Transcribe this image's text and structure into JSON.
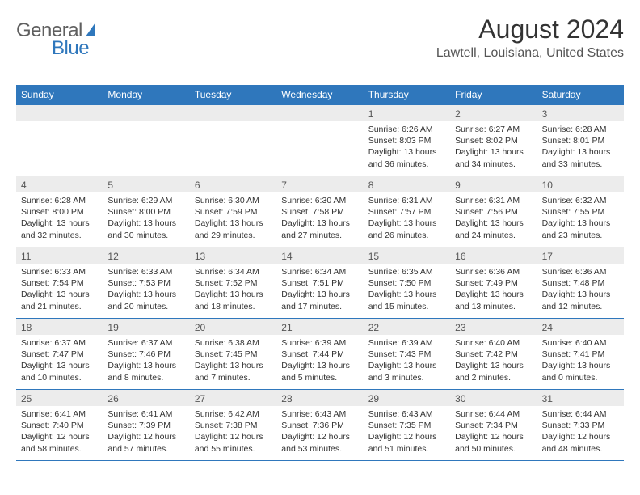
{
  "logo": {
    "general": "General",
    "blue": "Blue"
  },
  "title": "August 2024",
  "location": "Lawtell, Louisiana, United States",
  "colors": {
    "accent": "#2f77bc",
    "headerRowBg": "#ececec",
    "textDark": "#333333",
    "textMuted": "#555555",
    "logoGray": "#5f5f5f"
  },
  "dow": [
    "Sunday",
    "Monday",
    "Tuesday",
    "Wednesday",
    "Thursday",
    "Friday",
    "Saturday"
  ],
  "weeks": [
    [
      {
        "n": "",
        "sr": "",
        "ss": "",
        "dl": ""
      },
      {
        "n": "",
        "sr": "",
        "ss": "",
        "dl": ""
      },
      {
        "n": "",
        "sr": "",
        "ss": "",
        "dl": ""
      },
      {
        "n": "",
        "sr": "",
        "ss": "",
        "dl": ""
      },
      {
        "n": "1",
        "sr": "Sunrise: 6:26 AM",
        "ss": "Sunset: 8:03 PM",
        "dl": "Daylight: 13 hours and 36 minutes."
      },
      {
        "n": "2",
        "sr": "Sunrise: 6:27 AM",
        "ss": "Sunset: 8:02 PM",
        "dl": "Daylight: 13 hours and 34 minutes."
      },
      {
        "n": "3",
        "sr": "Sunrise: 6:28 AM",
        "ss": "Sunset: 8:01 PM",
        "dl": "Daylight: 13 hours and 33 minutes."
      }
    ],
    [
      {
        "n": "4",
        "sr": "Sunrise: 6:28 AM",
        "ss": "Sunset: 8:00 PM",
        "dl": "Daylight: 13 hours and 32 minutes."
      },
      {
        "n": "5",
        "sr": "Sunrise: 6:29 AM",
        "ss": "Sunset: 8:00 PM",
        "dl": "Daylight: 13 hours and 30 minutes."
      },
      {
        "n": "6",
        "sr": "Sunrise: 6:30 AM",
        "ss": "Sunset: 7:59 PM",
        "dl": "Daylight: 13 hours and 29 minutes."
      },
      {
        "n": "7",
        "sr": "Sunrise: 6:30 AM",
        "ss": "Sunset: 7:58 PM",
        "dl": "Daylight: 13 hours and 27 minutes."
      },
      {
        "n": "8",
        "sr": "Sunrise: 6:31 AM",
        "ss": "Sunset: 7:57 PM",
        "dl": "Daylight: 13 hours and 26 minutes."
      },
      {
        "n": "9",
        "sr": "Sunrise: 6:31 AM",
        "ss": "Sunset: 7:56 PM",
        "dl": "Daylight: 13 hours and 24 minutes."
      },
      {
        "n": "10",
        "sr": "Sunrise: 6:32 AM",
        "ss": "Sunset: 7:55 PM",
        "dl": "Daylight: 13 hours and 23 minutes."
      }
    ],
    [
      {
        "n": "11",
        "sr": "Sunrise: 6:33 AM",
        "ss": "Sunset: 7:54 PM",
        "dl": "Daylight: 13 hours and 21 minutes."
      },
      {
        "n": "12",
        "sr": "Sunrise: 6:33 AM",
        "ss": "Sunset: 7:53 PM",
        "dl": "Daylight: 13 hours and 20 minutes."
      },
      {
        "n": "13",
        "sr": "Sunrise: 6:34 AM",
        "ss": "Sunset: 7:52 PM",
        "dl": "Daylight: 13 hours and 18 minutes."
      },
      {
        "n": "14",
        "sr": "Sunrise: 6:34 AM",
        "ss": "Sunset: 7:51 PM",
        "dl": "Daylight: 13 hours and 17 minutes."
      },
      {
        "n": "15",
        "sr": "Sunrise: 6:35 AM",
        "ss": "Sunset: 7:50 PM",
        "dl": "Daylight: 13 hours and 15 minutes."
      },
      {
        "n": "16",
        "sr": "Sunrise: 6:36 AM",
        "ss": "Sunset: 7:49 PM",
        "dl": "Daylight: 13 hours and 13 minutes."
      },
      {
        "n": "17",
        "sr": "Sunrise: 6:36 AM",
        "ss": "Sunset: 7:48 PM",
        "dl": "Daylight: 13 hours and 12 minutes."
      }
    ],
    [
      {
        "n": "18",
        "sr": "Sunrise: 6:37 AM",
        "ss": "Sunset: 7:47 PM",
        "dl": "Daylight: 13 hours and 10 minutes."
      },
      {
        "n": "19",
        "sr": "Sunrise: 6:37 AM",
        "ss": "Sunset: 7:46 PM",
        "dl": "Daylight: 13 hours and 8 minutes."
      },
      {
        "n": "20",
        "sr": "Sunrise: 6:38 AM",
        "ss": "Sunset: 7:45 PM",
        "dl": "Daylight: 13 hours and 7 minutes."
      },
      {
        "n": "21",
        "sr": "Sunrise: 6:39 AM",
        "ss": "Sunset: 7:44 PM",
        "dl": "Daylight: 13 hours and 5 minutes."
      },
      {
        "n": "22",
        "sr": "Sunrise: 6:39 AM",
        "ss": "Sunset: 7:43 PM",
        "dl": "Daylight: 13 hours and 3 minutes."
      },
      {
        "n": "23",
        "sr": "Sunrise: 6:40 AM",
        "ss": "Sunset: 7:42 PM",
        "dl": "Daylight: 13 hours and 2 minutes."
      },
      {
        "n": "24",
        "sr": "Sunrise: 6:40 AM",
        "ss": "Sunset: 7:41 PM",
        "dl": "Daylight: 13 hours and 0 minutes."
      }
    ],
    [
      {
        "n": "25",
        "sr": "Sunrise: 6:41 AM",
        "ss": "Sunset: 7:40 PM",
        "dl": "Daylight: 12 hours and 58 minutes."
      },
      {
        "n": "26",
        "sr": "Sunrise: 6:41 AM",
        "ss": "Sunset: 7:39 PM",
        "dl": "Daylight: 12 hours and 57 minutes."
      },
      {
        "n": "27",
        "sr": "Sunrise: 6:42 AM",
        "ss": "Sunset: 7:38 PM",
        "dl": "Daylight: 12 hours and 55 minutes."
      },
      {
        "n": "28",
        "sr": "Sunrise: 6:43 AM",
        "ss": "Sunset: 7:36 PM",
        "dl": "Daylight: 12 hours and 53 minutes."
      },
      {
        "n": "29",
        "sr": "Sunrise: 6:43 AM",
        "ss": "Sunset: 7:35 PM",
        "dl": "Daylight: 12 hours and 51 minutes."
      },
      {
        "n": "30",
        "sr": "Sunrise: 6:44 AM",
        "ss": "Sunset: 7:34 PM",
        "dl": "Daylight: 12 hours and 50 minutes."
      },
      {
        "n": "31",
        "sr": "Sunrise: 6:44 AM",
        "ss": "Sunset: 7:33 PM",
        "dl": "Daylight: 12 hours and 48 minutes."
      }
    ]
  ]
}
